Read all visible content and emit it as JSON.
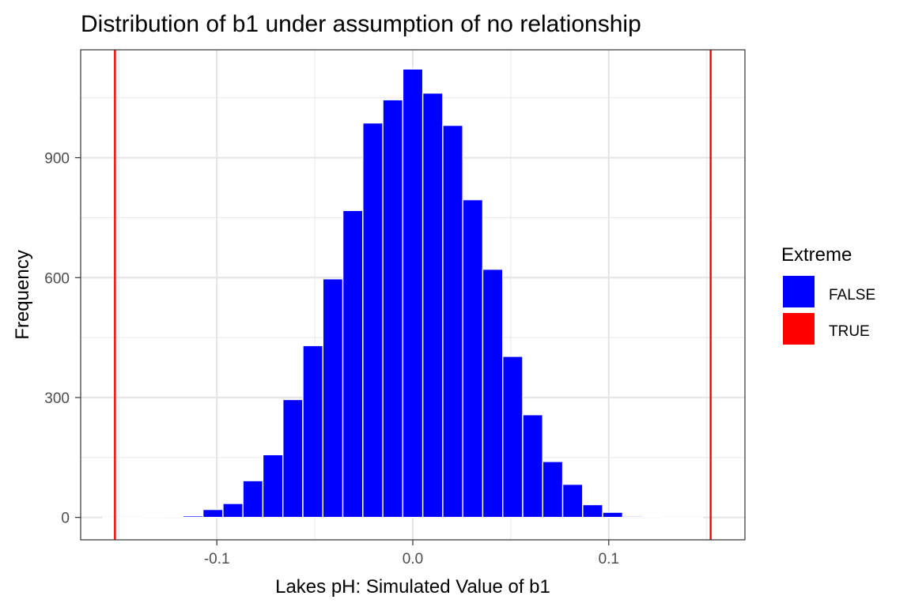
{
  "chart_data": {
    "type": "bar",
    "title": "Distribution of b1 under assumption of no relationship",
    "xlabel": "Lakes pH: Simulated Value of b1",
    "ylabel": "Frequency",
    "xlim": [
      -0.1695,
      0.1695
    ],
    "ylim": [
      -56,
      1170
    ],
    "x_ticks": [
      -0.1,
      0.0,
      0.1
    ],
    "x_tick_labels": [
      "-0.1",
      "0.0",
      "0.1"
    ],
    "y_ticks": [
      0,
      300,
      600,
      900
    ],
    "y_tick_labels": [
      "0",
      "300",
      "600",
      "900"
    ],
    "bin_width": 0.0102,
    "grid": true,
    "legend": {
      "title": "Extreme",
      "placement": "right",
      "entries": [
        {
          "label": "FALSE",
          "color": "#0000ff"
        },
        {
          "label": "TRUE",
          "color": "#ff0000"
        }
      ]
    },
    "series": [
      {
        "name": "FALSE",
        "color": "#0000ff",
        "bins": [
          {
            "x": -0.153,
            "y": 0
          },
          {
            "x": -0.1428,
            "y": 0
          },
          {
            "x": -0.1326,
            "y": 1
          },
          {
            "x": -0.1224,
            "y": 2
          },
          {
            "x": -0.1122,
            "y": 4
          },
          {
            "x": -0.102,
            "y": 20
          },
          {
            "x": -0.0918,
            "y": 35
          },
          {
            "x": -0.0816,
            "y": 92
          },
          {
            "x": -0.0714,
            "y": 157
          },
          {
            "x": -0.0612,
            "y": 295
          },
          {
            "x": -0.051,
            "y": 430
          },
          {
            "x": -0.0408,
            "y": 597
          },
          {
            "x": -0.0306,
            "y": 768
          },
          {
            "x": -0.0204,
            "y": 987
          },
          {
            "x": -0.0102,
            "y": 1045
          },
          {
            "x": 0.0,
            "y": 1122
          },
          {
            "x": 0.0102,
            "y": 1062
          },
          {
            "x": 0.0204,
            "y": 981
          },
          {
            "x": 0.0306,
            "y": 795
          },
          {
            "x": 0.0408,
            "y": 621
          },
          {
            "x": 0.051,
            "y": 403
          },
          {
            "x": 0.0612,
            "y": 257
          },
          {
            "x": 0.0714,
            "y": 140
          },
          {
            "x": 0.0816,
            "y": 83
          },
          {
            "x": 0.0918,
            "y": 32
          },
          {
            "x": 0.102,
            "y": 13
          },
          {
            "x": 0.1122,
            "y": 3
          },
          {
            "x": 0.1224,
            "y": 1
          },
          {
            "x": 0.1326,
            "y": 0
          },
          {
            "x": 0.1428,
            "y": 0
          }
        ]
      },
      {
        "name": "TRUE",
        "color": "#ff0000",
        "bins": [
          {
            "x": 0.0102,
            "y": 2
          }
        ]
      }
    ],
    "vlines": [
      {
        "x": -0.152,
        "color": "#ff0000"
      },
      {
        "x": 0.152,
        "color": "#ff0000"
      }
    ]
  }
}
